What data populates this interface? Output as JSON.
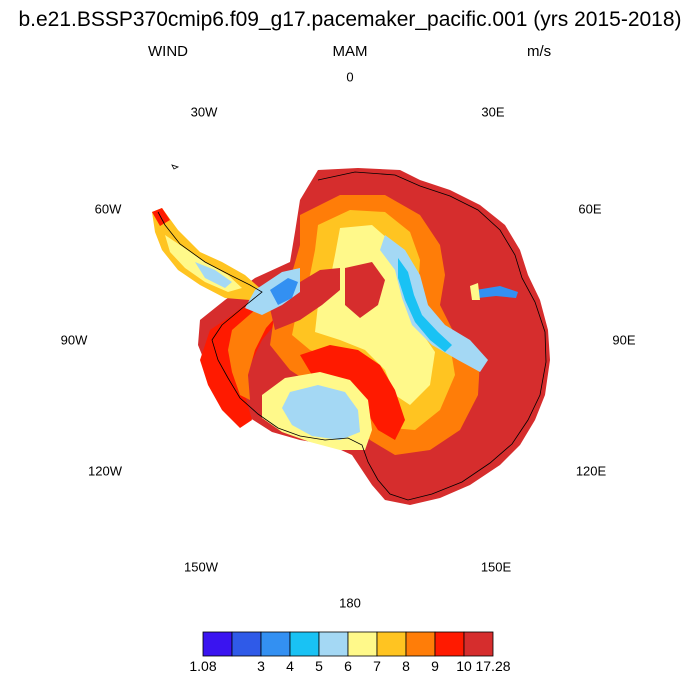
{
  "title": "b.e21.BSSP370cmip6.f09_g17.pacemaker_pacific.001 (yrs 2015-2018)",
  "left_label": "WIND",
  "center_label": "MAM",
  "right_label": "m/s",
  "longitude_labels": {
    "lon_0": "0",
    "lon_30e": "30E",
    "lon_60e": "60E",
    "lon_90e": "90E",
    "lon_120e": "120E",
    "lon_150e": "150E",
    "lon_180": "180",
    "lon_150w": "150W",
    "lon_120w": "120W",
    "lon_90w": "90W",
    "lon_60w": "60W",
    "lon_30w": "30W"
  },
  "colorbar": {
    "colors": [
      "#3a14f0",
      "#2f5ae8",
      "#3390f2",
      "#19c2f4",
      "#a4d8f4",
      "#fff98a",
      "#ffc421",
      "#ff7d08",
      "#ff1a00",
      "#d62d2d"
    ],
    "labels": [
      "1.08",
      "3",
      "4",
      "5",
      "6",
      "7",
      "8",
      "9",
      "10",
      "17.28"
    ]
  }
}
